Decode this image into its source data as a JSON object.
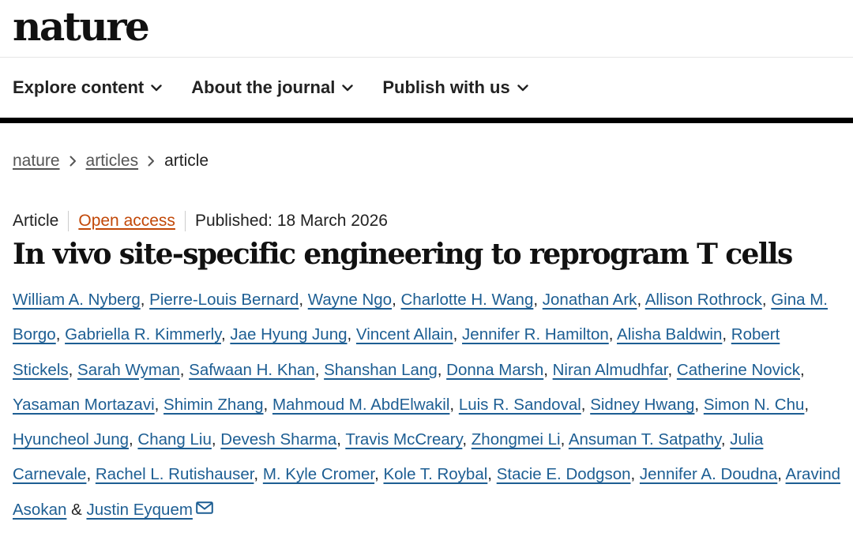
{
  "site": {
    "logo": "nature"
  },
  "nav": {
    "items": [
      {
        "label": "Explore content"
      },
      {
        "label": "About the journal"
      },
      {
        "label": "Publish with us"
      }
    ]
  },
  "breadcrumb": {
    "items": [
      {
        "label": "nature"
      },
      {
        "label": "articles"
      }
    ],
    "current": "article"
  },
  "article": {
    "type": "Article",
    "access": "Open access",
    "published": "Published: 18 March 2026",
    "title": "In vivo site-specific engineering to reprogram T cells",
    "authors": [
      "William A. Nyberg",
      "Pierre-Louis Bernard",
      "Wayne Ngo",
      "Charlotte H. Wang",
      "Jonathan Ark",
      "Allison Rothrock",
      "Gina M. Borgo",
      "Gabriella R. Kimmerly",
      "Jae Hyung Jung",
      "Vincent Allain",
      "Jennifer R. Hamilton",
      "Alisha Baldwin",
      "Robert Stickels",
      "Sarah Wyman",
      "Safwaan H. Khan",
      "Shanshan Lang",
      "Donna Marsh",
      "Niran Almudhfar",
      "Catherine Novick",
      "Yasaman Mortazavi",
      "Shimin Zhang",
      "Mahmoud M. AbdElwakil",
      "Luis R. Sandoval",
      "Sidney Hwang",
      "Simon N. Chu",
      "Hyuncheol Jung",
      "Chang Liu",
      "Devesh Sharma",
      "Travis McCreary",
      "Zhongmei Li",
      "Ansuman T. Satpathy",
      "Julia Carnevale",
      "Rachel L. Rutishauser",
      "M. Kyle Cromer",
      "Kole T. Roybal",
      "Stacie E. Dodgson",
      "Jennifer A. Doudna",
      "Aravind Asokan",
      "Justin Eyquem"
    ],
    "author_separator": ", ",
    "author_final_separator": " & ",
    "corresponding_icon": "mail-icon"
  },
  "colors": {
    "link": "#1d5e93",
    "open_access": "#c24808",
    "text": "#222222"
  }
}
